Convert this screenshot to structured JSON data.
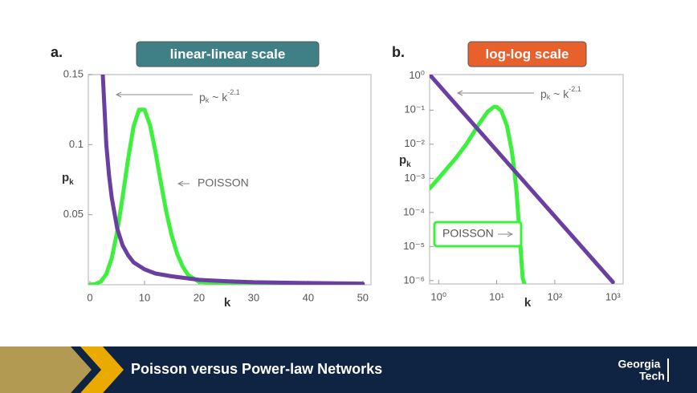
{
  "chart_data": [
    {
      "type": "line",
      "panel": "a.",
      "title": "linear-linear scale",
      "title_color": "#3f7f86",
      "xlabel": "k",
      "ylabel": {
        "text": "p",
        "sub": "k"
      },
      "xlim": [
        0,
        51.5
      ],
      "ylim": [
        0,
        0.15
      ],
      "xticks": [
        0,
        10,
        20,
        30,
        40,
        50
      ],
      "yticks": [
        0.05,
        0.1,
        0.15
      ],
      "log": false,
      "series": [
        {
          "name": "POISSON",
          "color": "#3df03d",
          "x": [
            0,
            1,
            2,
            3,
            4,
            5,
            6,
            7,
            8,
            9,
            10,
            11,
            12,
            13,
            14,
            15,
            16,
            17,
            18,
            20,
            25,
            30,
            40,
            50
          ],
          "values": [
            5e-05,
            0.0005,
            0.0023,
            0.0076,
            0.019,
            0.038,
            0.063,
            0.09,
            0.113,
            0.125,
            0.125,
            0.114,
            0.095,
            0.073,
            0.052,
            0.035,
            0.022,
            0.013,
            0.007,
            0.002,
            0.0002,
            0.0001,
            0.0001,
            0.0001
          ]
        },
        {
          "name": "power law",
          "color": "#6b3fa0",
          "x": [
            2.35,
            3,
            3.5,
            4,
            5,
            6,
            7,
            8,
            10,
            12,
            15,
            20,
            25,
            30,
            40,
            50
          ],
          "values": [
            0.15,
            0.1,
            0.078,
            0.062,
            0.04,
            0.028,
            0.021,
            0.016,
            0.011,
            0.008,
            0.006,
            0.0035,
            0.0025,
            0.0018,
            0.0012,
            0.0008
          ]
        }
      ],
      "annotations": [
        {
          "text": "p",
          "sub": "k",
          "mid": " ~ k",
          "sup": "-2.1"
        },
        {
          "text": "POISSON"
        }
      ]
    },
    {
      "type": "line",
      "panel": "b.",
      "title": "log-log scale",
      "title_color": "#e8602c",
      "xlabel": "k",
      "ylabel": {
        "text": "p",
        "sub": "k"
      },
      "xlim": [
        0.7,
        1500
      ],
      "ylim": [
        8e-07,
        1.1
      ],
      "xticks": [
        {
          "value": 1,
          "label": "10⁰"
        },
        {
          "value": 10,
          "label": "10¹"
        },
        {
          "value": 100,
          "label": "10²"
        },
        {
          "value": 1000,
          "label": "10³"
        }
      ],
      "yticks": [
        {
          "value": 1,
          "label": "10⁰"
        },
        {
          "value": 0.1,
          "label": "10⁻¹"
        },
        {
          "value": 0.01,
          "label": "10⁻²"
        },
        {
          "value": 0.001,
          "label": "10⁻³"
        },
        {
          "value": 0.0001,
          "label": "10⁻⁴"
        },
        {
          "value": 1e-05,
          "label": "10⁻⁵"
        },
        {
          "value": 1e-06,
          "label": "10⁻⁶"
        }
      ],
      "log": true,
      "series": [
        {
          "name": "POISSON",
          "color": "#3df03d",
          "x": [
            0.7,
            1,
            2,
            3,
            5,
            7,
            9,
            10,
            12,
            15,
            18,
            20,
            22,
            25,
            28,
            30
          ],
          "values": [
            0.0005,
            0.001,
            0.004,
            0.01,
            0.04,
            0.09,
            0.125,
            0.125,
            0.095,
            0.035,
            0.0071,
            0.0019,
            0.0004,
            2e-05,
            1.2e-06,
            8e-07
          ]
        },
        {
          "name": "power law",
          "color": "#6b3fa0",
          "x": [
            0.7,
            1000
          ],
          "values": [
            1.1,
            9e-07
          ]
        }
      ],
      "annotations": [
        {
          "text": "p",
          "sub": "k",
          "mid": " ~ k",
          "sup": "-2.1"
        },
        {
          "text": "POISSON"
        }
      ]
    }
  ],
  "footer": {
    "title": "Poisson versus Power-law Networks",
    "logo": [
      "Georgia",
      "Tech"
    ]
  }
}
